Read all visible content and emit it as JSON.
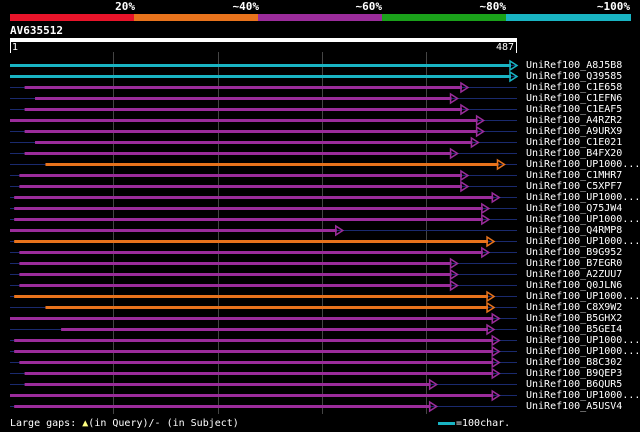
{
  "legend": {
    "labels": [
      "20%",
      "~40%",
      "~60%",
      "~80%",
      "~100%"
    ],
    "colors": [
      "#e8142a",
      "#e8731c",
      "#9b2c9b",
      "#1aa11a",
      "#19b4c3"
    ]
  },
  "query": {
    "title": "AV635512",
    "start": "1",
    "end": "487",
    "length": 487
  },
  "colors": {
    "cyan": "#19b4c3",
    "orange": "#e8731c",
    "purple": "#9b2c9b",
    "gap": "#1a2a6e",
    "grid": "#444444",
    "marker": "#ffff80"
  },
  "hits": [
    {
      "label": "UniRef100_A8J5B8",
      "color": "cyan",
      "start": 1,
      "end": 487
    },
    {
      "label": "UniRef100_Q39585",
      "color": "cyan",
      "start": 1,
      "end": 487
    },
    {
      "label": "UniRef100_C1E658",
      "color": "purple",
      "start": 15,
      "end": 440
    },
    {
      "label": "UniRef100_C1EFN6",
      "color": "purple",
      "start": 25,
      "end": 430
    },
    {
      "label": "UniRef100_C1EAF5",
      "color": "purple",
      "start": 15,
      "end": 440
    },
    {
      "label": "UniRef100_A4RZR2",
      "color": "purple",
      "start": 1,
      "end": 455
    },
    {
      "label": "UniRef100_A9URX9",
      "color": "purple",
      "start": 15,
      "end": 455
    },
    {
      "label": "UniRef100_C1E021",
      "color": "purple",
      "start": 25,
      "end": 450
    },
    {
      "label": "UniRef100_B4FX20",
      "color": "purple",
      "start": 15,
      "end": 430
    },
    {
      "label": "UniRef100_UP1000...",
      "color": "orange",
      "start": 35,
      "end": 475
    },
    {
      "label": "UniRef100_C1MHR7",
      "color": "purple",
      "start": 10,
      "end": 440
    },
    {
      "label": "UniRef100_C5XPF7",
      "color": "purple",
      "start": 10,
      "end": 440
    },
    {
      "label": "UniRef100_UP1000...",
      "color": "purple",
      "start": 5,
      "end": 470
    },
    {
      "label": "UniRef100_Q75JW4",
      "color": "purple",
      "start": 5,
      "end": 460
    },
    {
      "label": "UniRef100_UP1000...",
      "color": "purple",
      "start": 5,
      "end": 460
    },
    {
      "label": "UniRef100_Q4RMP8",
      "color": "purple",
      "start": 1,
      "end": 320
    },
    {
      "label": "UniRef100_UP1000...",
      "color": "orange",
      "start": 5,
      "end": 465
    },
    {
      "label": "UniRef100_B9G952",
      "color": "purple",
      "start": 10,
      "end": 460
    },
    {
      "label": "UniRef100_B7EGR0",
      "color": "purple",
      "start": 10,
      "end": 430
    },
    {
      "label": "UniRef100_A2ZUU7",
      "color": "purple",
      "start": 10,
      "end": 430
    },
    {
      "label": "UniRef100_Q0JLN6",
      "color": "purple",
      "start": 10,
      "end": 430
    },
    {
      "label": "UniRef100_UP1000...",
      "color": "orange",
      "start": 5,
      "end": 465
    },
    {
      "label": "UniRef100_C8X9W2",
      "color": "orange",
      "start": 35,
      "end": 465
    },
    {
      "label": "UniRef100_B5GHX2",
      "color": "purple",
      "start": 1,
      "end": 470
    },
    {
      "label": "UniRef100_B5GEI4",
      "color": "purple",
      "start": 50,
      "end": 465
    },
    {
      "label": "UniRef100_UP1000...",
      "color": "purple",
      "start": 5,
      "end": 470
    },
    {
      "label": "UniRef100_UP1000...",
      "color": "purple",
      "start": 5,
      "end": 470
    },
    {
      "label": "UniRef100_B8C302",
      "color": "purple",
      "start": 10,
      "end": 470
    },
    {
      "label": "UniRef100_B9QEP3",
      "color": "purple",
      "start": 15,
      "end": 470
    },
    {
      "label": "UniRef100_B6QUR5",
      "color": "purple",
      "start": 15,
      "end": 410
    },
    {
      "label": "UniRef100_UP1000...",
      "color": "purple",
      "start": 1,
      "end": 470
    },
    {
      "label": "UniRef100_A5USV4",
      "color": "purple",
      "start": 5,
      "end": 410
    }
  ],
  "footer": {
    "gaps_label": "Large gaps:",
    "gaps_query": "(in Query)/",
    "gaps_subject": "- (in Subject)",
    "scale_label": "=100char."
  }
}
